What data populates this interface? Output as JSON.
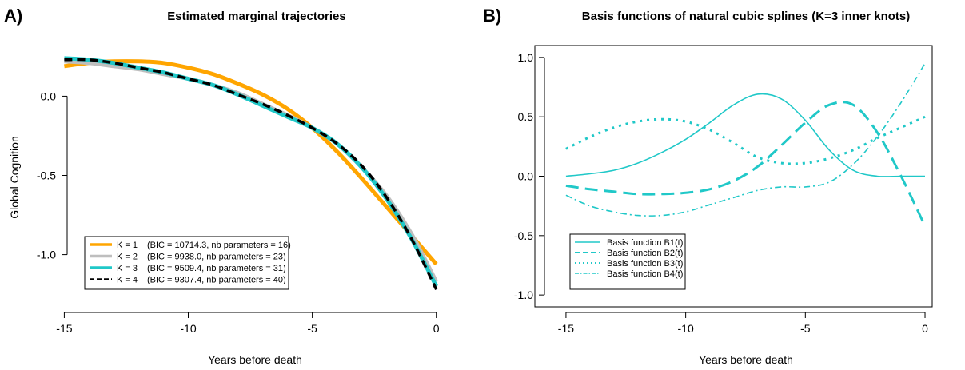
{
  "chart_data": [
    {
      "type": "line",
      "panel_label": "A)",
      "title": "Estimated marginal trajectories",
      "xlabel": "Years before death",
      "ylabel": "Global Cognition",
      "xlim": [
        -15.4,
        0.3
      ],
      "ylim": [
        -1.33,
        0.32
      ],
      "xticks": [
        -15,
        -10,
        -5,
        0
      ],
      "xtick_labels": [
        "-15",
        "-10",
        "-5",
        "0"
      ],
      "yticks": [
        -1.0,
        -0.5,
        0.0
      ],
      "ytick_labels": [
        "-1.0",
        "-0.5",
        "0.0"
      ],
      "legend_position": "bottom-left",
      "series": [
        {
          "name": "K = 1",
          "legend_text": "(BIC = 10714.3, nb parameters = 16)",
          "color": "#FFA500",
          "style": "solid",
          "x": [
            -15,
            -14,
            -13,
            -12,
            -11,
            -10,
            -9,
            -8,
            -7,
            -6,
            -5,
            -4,
            -3,
            -2,
            -1,
            0
          ],
          "y": [
            0.19,
            0.21,
            0.22,
            0.22,
            0.21,
            0.18,
            0.14,
            0.08,
            0.01,
            -0.08,
            -0.2,
            -0.35,
            -0.52,
            -0.7,
            -0.88,
            -1.06
          ]
        },
        {
          "name": "K = 2",
          "legend_text": "(BIC = 9938.0, nb parameters = 23)",
          "color": "#BEBEBE",
          "style": "solid",
          "x": [
            -15,
            -14,
            -13,
            -12,
            -11,
            -10,
            -9,
            -8,
            -7,
            -6,
            -5,
            -4,
            -3,
            -2,
            -1,
            0
          ],
          "y": [
            0.22,
            0.21,
            0.19,
            0.17,
            0.14,
            0.11,
            0.07,
            0.02,
            -0.05,
            -0.12,
            -0.2,
            -0.3,
            -0.45,
            -0.63,
            -0.87,
            -1.17
          ]
        },
        {
          "name": "K = 3",
          "legend_text": "(BIC = 9509.4, nb parameters = 31)",
          "color": "#20C8C8",
          "style": "solid",
          "x": [
            -15,
            -14,
            -13,
            -12,
            -11,
            -10,
            -9,
            -8,
            -7,
            -6,
            -5,
            -4,
            -3,
            -2,
            -1,
            0
          ],
          "y": [
            0.24,
            0.23,
            0.21,
            0.18,
            0.15,
            0.11,
            0.07,
            0.01,
            -0.06,
            -0.13,
            -0.2,
            -0.3,
            -0.45,
            -0.65,
            -0.9,
            -1.2
          ]
        },
        {
          "name": "K = 4",
          "legend_text": "(BIC = 9307.4, nb parameters = 40)",
          "color": "#000000",
          "style": "dashed",
          "x": [
            -15,
            -14,
            -13,
            -12,
            -11,
            -10,
            -9,
            -8,
            -7,
            -6,
            -5,
            -4,
            -3,
            -2,
            -1,
            0
          ],
          "y": [
            0.23,
            0.23,
            0.21,
            0.18,
            0.15,
            0.11,
            0.07,
            0.01,
            -0.05,
            -0.12,
            -0.2,
            -0.3,
            -0.44,
            -0.64,
            -0.9,
            -1.22
          ]
        }
      ]
    },
    {
      "type": "line",
      "panel_label": "B)",
      "title": "Basis functions of natural cubic splines (K=3 inner knots)",
      "xlabel": "Years before death",
      "ylabel": "",
      "xlim": [
        -16.3,
        0.3
      ],
      "ylim": [
        -1.1,
        1.1
      ],
      "xticks": [
        -15,
        -10,
        -5,
        0
      ],
      "xtick_labels": [
        "-15",
        "-10",
        "-5",
        "0"
      ],
      "yticks": [
        -1.0,
        -0.5,
        0.0,
        0.5,
        1.0
      ],
      "ytick_labels": [
        "-1.0",
        "-0.5",
        "0.0",
        "0.5",
        "1.0"
      ],
      "legend_position": "bottom-left",
      "series": [
        {
          "name": "Basis function B1(t)",
          "color": "#20C8C8",
          "style": "solid",
          "x": [
            -15,
            -14,
            -13,
            -12,
            -11,
            -10,
            -9,
            -8,
            -7,
            -6,
            -5,
            -4,
            -3,
            -2,
            -1,
            0
          ],
          "y": [
            0.0,
            0.02,
            0.05,
            0.11,
            0.2,
            0.31,
            0.45,
            0.6,
            0.69,
            0.65,
            0.47,
            0.22,
            0.05,
            0.0,
            0.0,
            0.0
          ]
        },
        {
          "name": "Basis function B2(t)",
          "color": "#20C8C8",
          "style": "dash",
          "x": [
            -15,
            -14,
            -13,
            -12,
            -11,
            -10,
            -9,
            -8,
            -7,
            -6,
            -5,
            -4,
            -3,
            -2,
            -1,
            0
          ],
          "y": [
            -0.08,
            -0.11,
            -0.13,
            -0.15,
            -0.15,
            -0.14,
            -0.11,
            -0.04,
            0.08,
            0.26,
            0.45,
            0.6,
            0.6,
            0.37,
            0.0,
            -0.42
          ]
        },
        {
          "name": "Basis function B3(t)",
          "color": "#20C8C8",
          "style": "dot",
          "x": [
            -15,
            -14,
            -13,
            -12,
            -11,
            -10,
            -9,
            -8,
            -7,
            -6,
            -5,
            -4,
            -3,
            -2,
            -1,
            0
          ],
          "y": [
            0.23,
            0.33,
            0.41,
            0.46,
            0.48,
            0.46,
            0.39,
            0.28,
            0.16,
            0.11,
            0.11,
            0.15,
            0.22,
            0.32,
            0.41,
            0.5
          ]
        },
        {
          "name": "Basis function B4(t)",
          "color": "#20C8C8",
          "style": "dashdot",
          "x": [
            -15,
            -14,
            -13,
            -12,
            -11,
            -10,
            -9,
            -8,
            -7,
            -6,
            -5,
            -4,
            -3,
            -2,
            -1,
            0
          ],
          "y": [
            -0.16,
            -0.25,
            -0.3,
            -0.33,
            -0.33,
            -0.3,
            -0.24,
            -0.18,
            -0.12,
            -0.09,
            -0.09,
            -0.05,
            0.1,
            0.33,
            0.62,
            0.95
          ]
        }
      ]
    }
  ]
}
